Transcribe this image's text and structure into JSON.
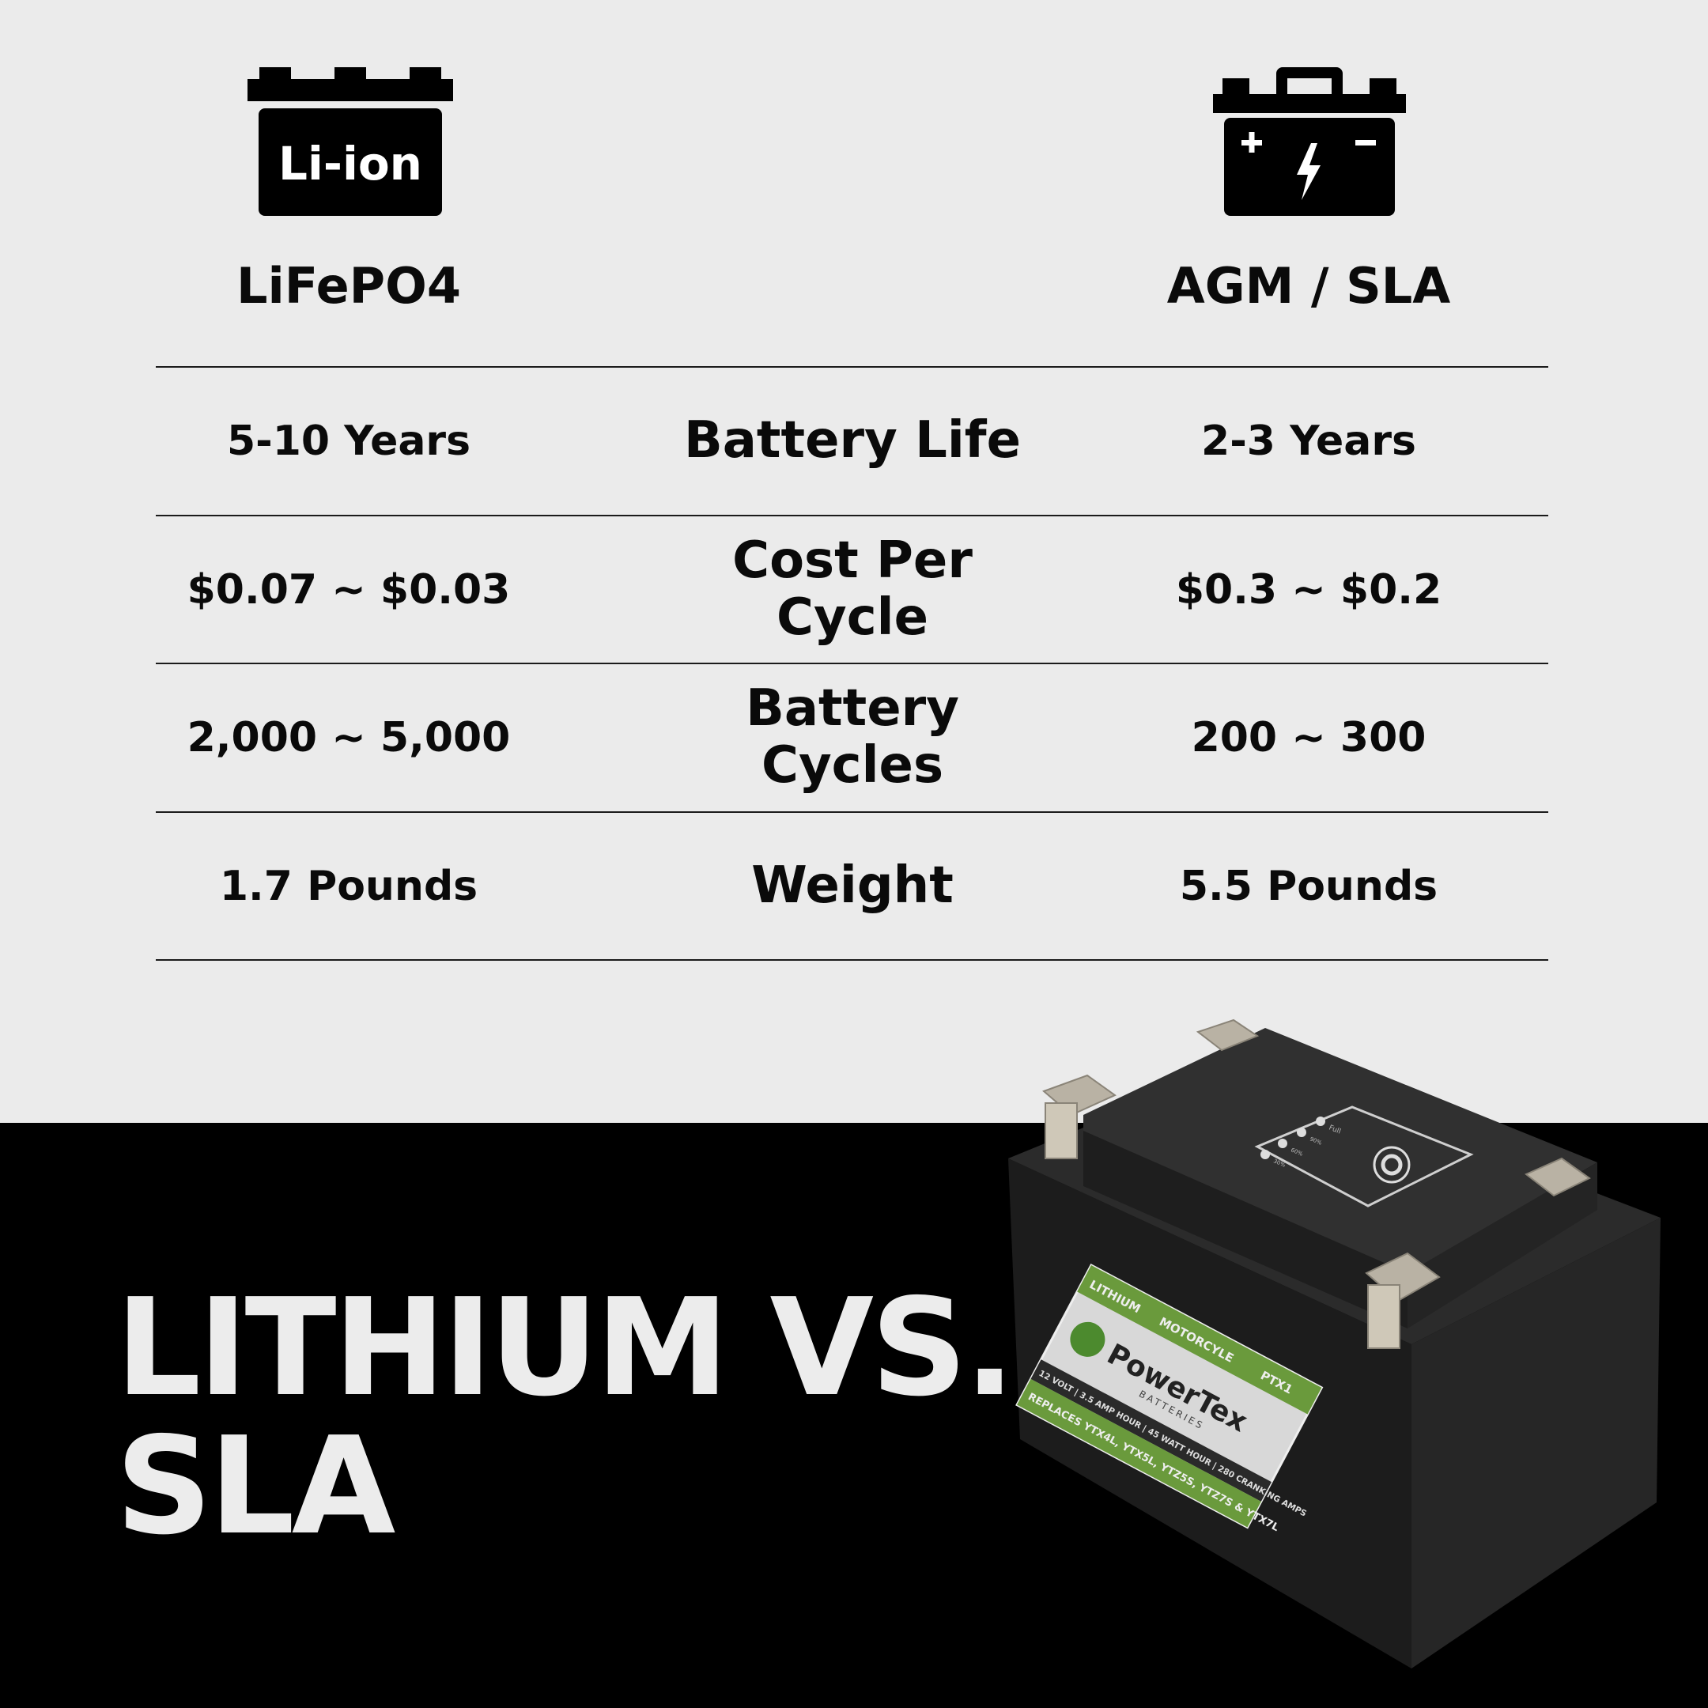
{
  "columns": {
    "left": {
      "icon": "li-ion-battery-icon",
      "icon_label": "Li-ion",
      "heading": "LiFePO4"
    },
    "right": {
      "icon": "car-battery-icon",
      "heading": "AGM / SLA"
    }
  },
  "rows": [
    {
      "metric": "Battery Life",
      "lifepo4": "5-10 Years",
      "agm": "2-3 Years"
    },
    {
      "metric": "Cost Per Cycle",
      "lifepo4": "$0.07 ~ $0.03",
      "agm": "$0.3 ~ $0.2"
    },
    {
      "metric": "Battery Cycles",
      "lifepo4": "2,000 ~ 5,000",
      "agm": "200 ~ 300"
    },
    {
      "metric": "Weight",
      "lifepo4": "1.7 Pounds",
      "agm": "5.5 Pounds"
    }
  ],
  "title": {
    "line1": "LITHIUM VS.",
    "line2": "SLA"
  },
  "product": {
    "brand": "PowerTex",
    "brand_sub": "BATTERIES",
    "tags": [
      "LITHIUM",
      "MOTORCYLE",
      "PTX1"
    ],
    "specs": "12 VOLT | 3.5 AMP HOUR | 45 WATT HOUR | 280 CRANKING AMPS",
    "replaces": "REPLACES YTX4L, YTX5L, YTZ5S, YTZ7S & YTX7L",
    "indicator_levels": [
      "Full",
      "90%",
      "60%",
      "30%"
    ]
  },
  "colors": {
    "background_top": "#ebebeb",
    "background_bottom": "#000000",
    "label_green": "#6a9a3c"
  }
}
